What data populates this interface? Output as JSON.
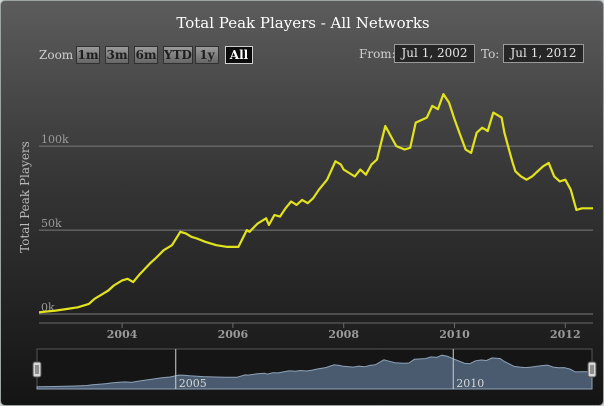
{
  "chart_data": {
    "type": "line",
    "title": "Total Peak Players - All Networks",
    "ylabel": "Total Peak Players",
    "xlabel": "",
    "ylim": [
      0,
      140000
    ],
    "yticks": [
      {
        "v": 0,
        "label": "0k"
      },
      {
        "v": 50000,
        "label": "50k"
      },
      {
        "v": 100000,
        "label": "100k"
      }
    ],
    "xticks": [
      {
        "v": 2004,
        "label": "2004"
      },
      {
        "v": 2006,
        "label": "2006"
      },
      {
        "v": 2008,
        "label": "2008"
      },
      {
        "v": 2010,
        "label": "2010"
      },
      {
        "v": 2012,
        "label": "2012"
      }
    ],
    "xlim": [
      2002.5,
      2012.5
    ],
    "grid": "horizontal",
    "legend": "none",
    "line_color": "#e3e31d",
    "series": [
      {
        "x": [
          2002.5,
          2002.8,
          2003.0,
          2003.2,
          2003.4,
          2003.5,
          2003.65,
          2003.75,
          2003.85,
          2004.0,
          2004.1,
          2004.2,
          2004.3,
          2004.5,
          2004.6,
          2004.75,
          2004.9,
          2005.05,
          2005.15,
          2005.25,
          2005.35,
          2005.5,
          2005.7,
          2005.9,
          2006.1,
          2006.25,
          2006.3,
          2006.45,
          2006.6,
          2006.65,
          2006.75,
          2006.85,
          2006.95,
          2007.05,
          2007.15,
          2007.25,
          2007.35,
          2007.45,
          2007.55,
          2007.7,
          2007.85,
          2007.95,
          2008.0,
          2008.1,
          2008.2,
          2008.3,
          2008.4,
          2008.5,
          2008.6,
          2008.75,
          2008.85,
          2008.95,
          2009.1,
          2009.2,
          2009.3,
          2009.5,
          2009.6,
          2009.7,
          2009.8,
          2009.9,
          2010.0,
          2010.1,
          2010.2,
          2010.3,
          2010.4,
          2010.5,
          2010.6,
          2010.7,
          2010.85,
          2010.9,
          2011.0,
          2011.05,
          2011.1,
          2011.2,
          2011.3,
          2011.4,
          2011.5,
          2011.6,
          2011.7,
          2011.8,
          2011.9,
          2012.0,
          2012.05,
          2012.1,
          2012.2,
          2012.3,
          2012.35,
          2012.4,
          2012.45,
          2012.5
        ],
        "y": [
          1000,
          2000,
          3000,
          4000,
          6000,
          9000,
          12000,
          14000,
          17000,
          20000,
          21000,
          19000,
          23000,
          30000,
          33000,
          38000,
          41000,
          49000,
          48000,
          46000,
          45000,
          43000,
          41000,
          40000,
          40000,
          50000,
          49000,
          54000,
          57000,
          53000,
          59000,
          58000,
          63000,
          67000,
          65000,
          68000,
          66000,
          69000,
          74000,
          80000,
          91000,
          89000,
          86000,
          84000,
          82000,
          86000,
          83000,
          89000,
          92000,
          112000,
          106000,
          100000,
          98000,
          99000,
          114000,
          117000,
          124000,
          122000,
          131000,
          126000,
          116000,
          107000,
          98000,
          96000,
          108000,
          111000,
          109000,
          120000,
          117000,
          108000,
          96000,
          90000,
          85000,
          82000,
          80000,
          82000,
          85000,
          88000,
          90000,
          82000,
          79000,
          80000,
          77000,
          74000,
          62000,
          63000,
          63000,
          63000,
          63000,
          63000
        ]
      }
    ]
  },
  "zoom": {
    "label": "Zoom",
    "buttons": [
      "1m",
      "3m",
      "6m",
      "YTD",
      "1y",
      "All"
    ],
    "selected": "All"
  },
  "range": {
    "from_label": "From:",
    "from_value": "Jul 1, 2002",
    "to_label": "To:",
    "to_value": "Jul 1, 2012"
  },
  "navigator": {
    "labels": [
      {
        "v": 2005,
        "label": "2005"
      },
      {
        "v": 2010,
        "label": "2010"
      }
    ]
  }
}
